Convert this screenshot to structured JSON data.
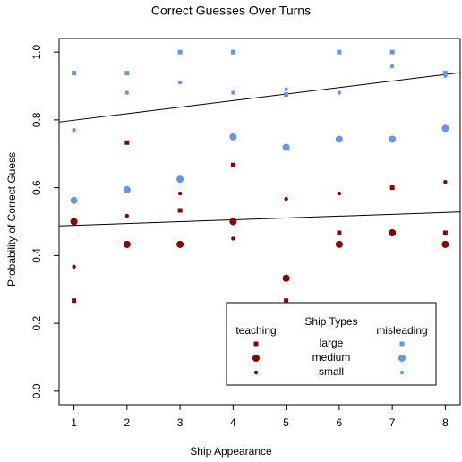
{
  "chart_data": {
    "type": "scatter",
    "title": "Correct Guesses Over Turns",
    "x_label": "Ship Appearance",
    "y_label": "Probability of Correct Guess",
    "x": [
      1,
      2,
      3,
      4,
      5,
      6,
      7,
      8
    ],
    "xlim": [
      0.72,
      8.28
    ],
    "xticks": [
      1,
      2,
      3,
      4,
      5,
      6,
      7,
      8
    ],
    "ylim": [
      -0.04,
      1.04
    ],
    "yticks": [
      {
        "value": 0,
        "label": "0.0"
      },
      {
        "value": 0.2,
        "label": "0.2"
      },
      {
        "value": 0.4,
        "label": "0.4"
      },
      {
        "value": 0.6,
        "label": "0.6"
      },
      {
        "value": 0.8,
        "label": "0.8"
      },
      {
        "value": 1,
        "label": "1.0"
      }
    ],
    "legend_title": "Ship Types",
    "size_names": [
      "large",
      "medium",
      "small"
    ],
    "series": [
      {
        "name": "teaching",
        "color": "#8b0000",
        "values_by_size": [
          [
            0.267,
            0.733,
            0.533,
            0.667,
            0.267,
            0.467,
            0.6,
            0.467
          ],
          [
            0.5,
            0.433,
            0.433,
            0.5,
            0.333,
            0.433,
            0.467,
            0.433
          ],
          [
            0.367,
            0.517,
            0.583,
            0.45,
            0.567,
            0.583,
            0.6,
            0.617
          ]
        ],
        "trend": [
          0.489,
          0.527
        ]
      },
      {
        "name": "misleading",
        "color": "#6495ed",
        "values_by_size": [
          [
            0.938,
            0.938,
            1,
            1,
            0.875,
            1,
            1,
            0.938
          ],
          [
            0.5625,
            0.594,
            0.625,
            0.75,
            0.719,
            0.743,
            0.743,
            0.775
          ],
          [
            0.77,
            0.88,
            0.91,
            0.88,
            0.89,
            0.88,
            0.958,
            0.93
          ]
        ],
        "trend": [
          0.799,
          0.934
        ]
      }
    ]
  }
}
